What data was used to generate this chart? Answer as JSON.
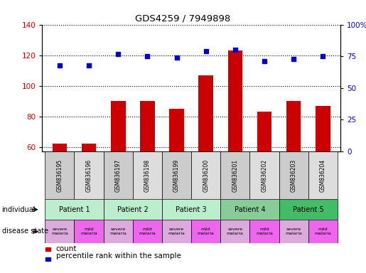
{
  "title": "GDS4259 / 7949898",
  "samples": [
    "GSM836195",
    "GSM836196",
    "GSM836197",
    "GSM836198",
    "GSM836199",
    "GSM836200",
    "GSM836201",
    "GSM836202",
    "GSM836203",
    "GSM836204"
  ],
  "counts": [
    62,
    62,
    90,
    90,
    85,
    107,
    123,
    83,
    90,
    87
  ],
  "percentiles_pct": [
    68,
    68,
    77,
    75,
    74,
    79,
    80,
    71,
    73,
    75
  ],
  "ylim_left": [
    57,
    140
  ],
  "ylim_right": [
    0,
    100
  ],
  "yticks_left": [
    60,
    80,
    100,
    120,
    140
  ],
  "yticks_right": [
    0,
    25,
    50,
    75,
    100
  ],
  "patients": [
    {
      "label": "Patient 1",
      "cols": [
        0,
        1
      ],
      "color": "#bbeecc"
    },
    {
      "label": "Patient 2",
      "cols": [
        2,
        3
      ],
      "color": "#bbeecc"
    },
    {
      "label": "Patient 3",
      "cols": [
        4,
        5
      ],
      "color": "#bbeecc"
    },
    {
      "label": "Patient 4",
      "cols": [
        6,
        7
      ],
      "color": "#88cc99"
    },
    {
      "label": "Patient 5",
      "cols": [
        8,
        9
      ],
      "color": "#44bb66"
    }
  ],
  "disease_states": [
    {
      "label": "severe\nmalaria",
      "col": 0,
      "color": "#ddaadd"
    },
    {
      "label": "mild\nmalaria",
      "col": 1,
      "color": "#ee66ee"
    },
    {
      "label": "severe\nmalaria",
      "col": 2,
      "color": "#ddaadd"
    },
    {
      "label": "mild\nmalaria",
      "col": 3,
      "color": "#ee66ee"
    },
    {
      "label": "severe\nmalaria",
      "col": 4,
      "color": "#ddaadd"
    },
    {
      "label": "mild\nmalaria",
      "col": 5,
      "color": "#ee66ee"
    },
    {
      "label": "severe\nmalaria",
      "col": 6,
      "color": "#ddaadd"
    },
    {
      "label": "mild\nmalaria",
      "col": 7,
      "color": "#ee66ee"
    },
    {
      "label": "severe\nmalaria",
      "col": 8,
      "color": "#ddaadd"
    },
    {
      "label": "mild\nmalaria",
      "col": 9,
      "color": "#ee66ee"
    }
  ],
  "bar_color": "#cc0000",
  "dot_color": "#0000cc",
  "count_label": "count",
  "percentile_label": "percentile rank within the sample",
  "individual_label": "individual",
  "disease_state_label": "disease state",
  "left_axis_color": "#cc0000",
  "right_axis_color": "#0000cc",
  "background_color": "#ffffff",
  "gsm_bg_even": "#cccccc",
  "gsm_bg_odd": "#dddddd"
}
